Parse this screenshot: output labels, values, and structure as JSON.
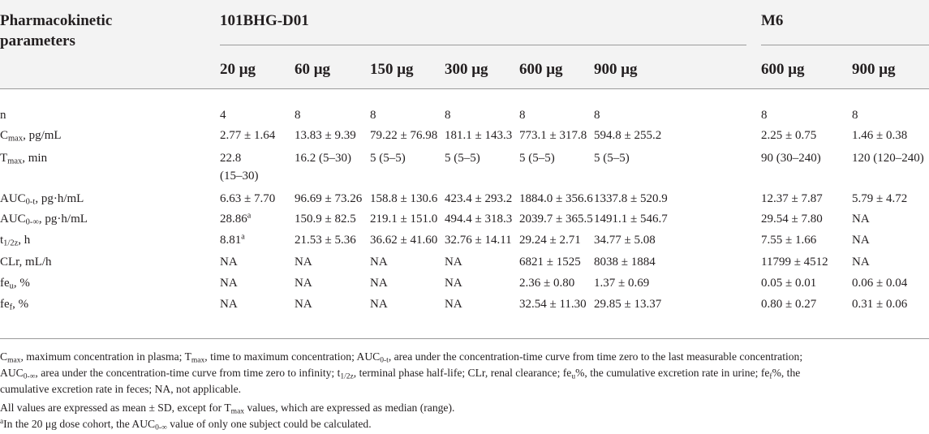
{
  "header": {
    "param_line1": "Pharmacokinetic",
    "param_line2": "parameters",
    "group_101": "101BHG-D01",
    "group_m6": "M6",
    "doses": [
      "20 μg",
      "60 μg",
      "150 μg",
      "300 μg",
      "600 μg",
      "900 μg",
      "600 μg",
      "900 μg"
    ]
  },
  "rows": [
    {
      "label": "n",
      "values": [
        "4",
        "8",
        "8",
        "8",
        "8",
        "8",
        "8",
        "8"
      ]
    },
    {
      "label_main": "C",
      "label_sub": "max",
      "label_rest": ", pg/mL",
      "values": [
        "2.77 ± 1.64",
        "13.83 ± 9.39",
        "79.22 ± 76.98",
        "181.1 ± 143.3",
        "773.1 ± 317.8",
        "594.8 ± 255.2",
        "2.25 ± 0.75",
        "1.46 ± 0.38"
      ]
    },
    {
      "label_main": "T",
      "label_sub": "max",
      "label_rest": ", min",
      "values": [
        "22.8",
        "16.2 (5–30)",
        "5 (5–5)",
        "5 (5–5)",
        "5 (5–5)",
        "5 (5–5)",
        "90 (30–240)",
        "120 (120–240)"
      ],
      "value0_line2": "(15–30)"
    },
    {
      "label_main": "AUC",
      "label_sub": "0-t",
      "label_rest": ", pg·h/mL",
      "values": [
        "6.63 ± 7.70",
        "96.69 ± 73.26",
        "158.8 ± 130.6",
        "423.4 ± 293.2",
        "1884.0 ± 356.6",
        "1337.8 ± 520.9",
        "12.37 ± 7.87",
        "5.79 ± 4.72"
      ]
    },
    {
      "label_main": "AUC",
      "label_sub": "0-∞",
      "label_rest": ", pg·h/mL",
      "values": [
        "28.86",
        "150.9 ± 82.5",
        "219.1 ± 151.0",
        "494.4 ± 318.3",
        "2039.7 ± 365.5",
        "1491.1 ± 546.7",
        "29.54 ± 7.80",
        "NA"
      ],
      "value0_sup": "a"
    },
    {
      "label_main": "t",
      "label_sub": "1/2z",
      "label_rest": ", h",
      "values": [
        "8.81",
        "21.53 ± 5.36",
        "36.62 ± 41.60",
        "32.76 ± 14.11",
        "29.24 ± 2.71",
        "34.77 ± 5.08",
        "7.55 ± 1.66",
        "NA"
      ],
      "value0_sup": "a"
    },
    {
      "label": "CLr, mL/h",
      "values": [
        "NA",
        "NA",
        "NA",
        "NA",
        "6821 ± 1525",
        "8038 ± 1884",
        "11799 ± 4512",
        "NA"
      ]
    },
    {
      "label_main": "fe",
      "label_sub": "u",
      "label_rest": ", %",
      "values": [
        "NA",
        "NA",
        "NA",
        "NA",
        "2.36 ± 0.80",
        "1.37 ± 0.69",
        "0.05 ± 0.01",
        "0.06 ± 0.04"
      ]
    },
    {
      "label_main": "fe",
      "label_sub": "f",
      "label_rest": ", %",
      "values": [
        "NA",
        "NA",
        "NA",
        "NA",
        "32.54 ± 11.30",
        "29.85 ± 13.37",
        "0.80 ± 0.27",
        "0.31 ± 0.06"
      ]
    }
  ],
  "footnotes": {
    "abbrev": {
      "cmax": "C",
      "cmax_sub": "max",
      "cmax_def": ", maximum concentration in plasma; ",
      "tmax": "T",
      "tmax_sub": "max",
      "tmax_def": ", time to maximum concentration; ",
      "auct": "AUC",
      "auct_sub": "0-t",
      "auct_def": ", area under the concentration-time curve from time zero to the last measurable concentration;",
      "aucinf": "AUC",
      "aucinf_sub": "0-∞",
      "aucinf_def": ", area under the concentration-time curve from time zero to infinity; ",
      "t12": "t",
      "t12_sub": "1/2z",
      "t12_def": ", terminal phase half-life; CLr, renal clearance; ",
      "feu": "fe",
      "feu_sub": "u",
      "feu_def": "%, the cumulative excretion rate in urine; ",
      "fef": "fe",
      "fef_sub": "f",
      "fef_def": "%, the",
      "line3": "cumulative excretion rate in feces; NA, not applicable."
    },
    "note_pre": "All values are expressed as mean ± SD, except for ",
    "note_t": "T",
    "note_sub": "max",
    "note_post": " values, which are expressed as median (range).",
    "a_mark": "a",
    "a_pre": "In the 20 μg dose cohort, the AUC",
    "a_sub": "0-∞",
    "a_post": " value of only one subject could be calculated."
  }
}
